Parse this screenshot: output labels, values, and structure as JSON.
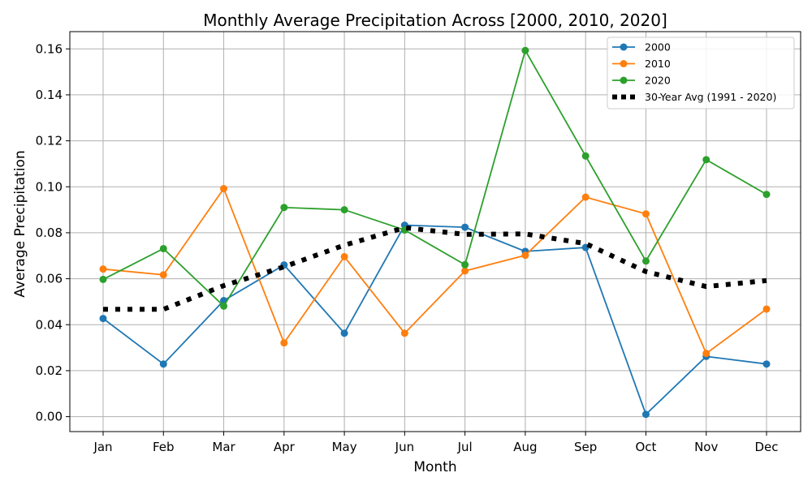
{
  "colors": {
    "series_2000": "#1f77b4",
    "series_2010": "#ff7f0e",
    "series_2020": "#2ca02c",
    "avg": "#000000",
    "grid": "#b0b0b0"
  },
  "chart_data": {
    "type": "line",
    "title": "Monthly Average Precipitation Across [2000, 2010, 2020]",
    "xlabel": "Month",
    "ylabel": "Average Precipitation",
    "categories": [
      "Jan",
      "Feb",
      "Mar",
      "Apr",
      "May",
      "Jun",
      "Jul",
      "Aug",
      "Sep",
      "Oct",
      "Nov",
      "Dec"
    ],
    "ylim": [
      -0.0065,
      0.1675
    ],
    "yticks": [
      "0.00",
      "0.02",
      "0.04",
      "0.06",
      "0.08",
      "0.10",
      "0.12",
      "0.14",
      "0.16"
    ],
    "ytick_values": [
      0,
      0.02,
      0.04,
      0.06,
      0.08,
      0.1,
      0.12,
      0.14,
      0.16
    ],
    "grid": true,
    "legend_position": "top-right",
    "series": [
      {
        "name": "2000",
        "color": "#1f77b4",
        "style": "solid-marker",
        "values": [
          0.0427,
          0.0229,
          0.0505,
          0.066,
          0.0363,
          0.0833,
          0.0824,
          0.0719,
          0.0736,
          0.001,
          0.0262,
          0.0229
        ]
      },
      {
        "name": "2010",
        "color": "#ff7f0e",
        "style": "solid-marker",
        "values": [
          0.0642,
          0.0617,
          0.0992,
          0.0321,
          0.0696,
          0.0363,
          0.0634,
          0.0702,
          0.0955,
          0.0882,
          0.0275,
          0.0468
        ]
      },
      {
        "name": "2020",
        "color": "#2ca02c",
        "style": "solid-marker",
        "values": [
          0.0597,
          0.0731,
          0.0481,
          0.091,
          0.09,
          0.0812,
          0.0661,
          0.1593,
          0.1134,
          0.0677,
          0.1118,
          0.0967
        ]
      },
      {
        "name": "30-Year Avg (1991 - 2020)",
        "color": "#000000",
        "style": "dotted",
        "values": [
          0.0467,
          0.0467,
          0.057,
          0.0652,
          0.0746,
          0.0822,
          0.0793,
          0.0795,
          0.0753,
          0.0631,
          0.0566,
          0.0592
        ]
      }
    ]
  }
}
